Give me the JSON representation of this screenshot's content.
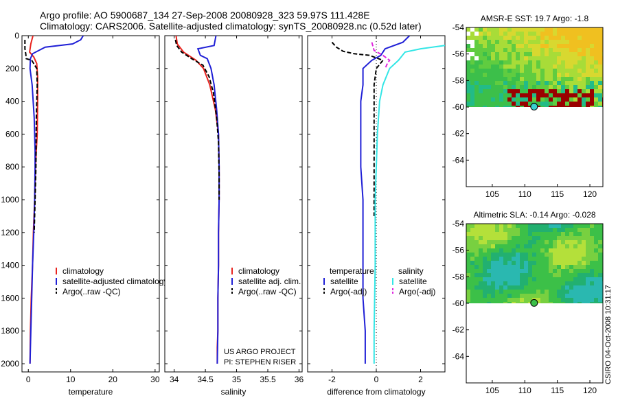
{
  "header": {
    "line1": "Argo profile: AO 5900687_134 27-Sep-2008 20080928_323 59.97S 111.428E",
    "line2": "Climatology: CARS2006. Satellite-adjusted climatology: synTS_20080928.nc (0.52d later)"
  },
  "credit": "CSIRO 04-Oct-2008 10:31:17",
  "colors": {
    "climatology": "#e8231e",
    "satellite": "#1f1fd6",
    "argo": "#000000",
    "sal_satellite": "#33e6e6",
    "sal_argo": "#e026e0",
    "land": "#9a0000"
  },
  "chart_data": [
    {
      "type": "line",
      "name": "temperature-profile",
      "xlabel": "temperature",
      "ylabel": "",
      "xlim": [
        -1.5,
        31
      ],
      "ylim": [
        2050,
        0
      ],
      "xticks": [
        0,
        10,
        20,
        30
      ],
      "yticks": [
        0,
        200,
        400,
        600,
        800,
        1000,
        1200,
        1400,
        1600,
        1800,
        2000
      ],
      "legend": [
        "climatology",
        "satellite-adjusted climatology",
        "Argo(..raw -QC)"
      ],
      "series": [
        {
          "name": "climatology",
          "style": "solid",
          "color": "#e8231e",
          "x": [
            1.1,
            0.6,
            0.3,
            1.3,
            2.0,
            2.2,
            2.2,
            2.1,
            1.9,
            1.7,
            1.5,
            1.2,
            1.0,
            0.7,
            0.5,
            0.4
          ],
          "y": [
            0,
            50,
            100,
            130,
            170,
            250,
            400,
            600,
            700,
            800,
            1000,
            1200,
            1400,
            1600,
            1800,
            2000
          ]
        },
        {
          "name": "satellite-adjusted climatology",
          "style": "solid",
          "color": "#1f1fd6",
          "x": [
            13.0,
            12.4,
            10.5,
            4.0,
            1.0,
            0.5,
            0.4,
            0.9,
            1.4,
            1.6,
            1.6,
            1.5,
            1.3,
            1.0,
            0.8,
            0.6,
            0.4
          ],
          "y": [
            0,
            25,
            50,
            70,
            110,
            140,
            200,
            300,
            500,
            700,
            800,
            1000,
            1200,
            1400,
            1600,
            1800,
            2000
          ]
        },
        {
          "name": "Argo(..raw -QC)",
          "style": "dashed",
          "color": "#000000",
          "x": [
            -0.8,
            -0.8,
            -0.6,
            -0.5,
            0.8,
            2.0,
            2.1,
            1.9,
            1.8,
            1.6,
            1.4
          ],
          "y": [
            25,
            80,
            110,
            140,
            150,
            200,
            300,
            500,
            800,
            1000,
            1200
          ]
        }
      ]
    },
    {
      "type": "line",
      "name": "salinity-profile",
      "xlabel": "salinity",
      "ylabel": "",
      "xlim": [
        33.85,
        36.05
      ],
      "ylim": [
        2050,
        0
      ],
      "xticks": [
        34,
        34.5,
        35,
        35.5,
        36
      ],
      "yticks": [
        0,
        200,
        400,
        600,
        800,
        1000,
        1200,
        1400,
        1600,
        1800,
        2000
      ],
      "legend": [
        "climatology",
        "satellite adj. clim.",
        "Argo(..raw -QC)"
      ],
      "annotation": [
        "US ARGO PROJECT",
        "PI: STEPHEN RISER"
      ],
      "series": [
        {
          "name": "climatology",
          "style": "solid",
          "color": "#e8231e",
          "x": [
            34.03,
            34.05,
            34.15,
            34.35,
            34.47,
            34.57,
            34.66,
            34.71,
            34.72,
            34.72,
            34.71,
            34.71,
            34.7,
            34.7,
            34.69,
            34.69
          ],
          "y": [
            0,
            50,
            100,
            150,
            200,
            300,
            450,
            600,
            800,
            1000,
            1200,
            1400,
            1600,
            1800,
            1900,
            2000
          ]
        },
        {
          "name": "satellite adj. clim.",
          "style": "solid",
          "color": "#1f1fd6",
          "x": [
            34.67,
            34.64,
            34.38,
            34.42,
            34.53,
            34.59,
            34.64,
            34.68,
            34.71,
            34.72,
            34.72,
            34.71,
            34.71,
            34.7,
            34.7,
            34.69
          ],
          "y": [
            0,
            60,
            80,
            120,
            140,
            200,
            300,
            450,
            600,
            800,
            1000,
            1200,
            1400,
            1600,
            1800,
            2000
          ]
        },
        {
          "name": "Argo(..raw -QC)",
          "style": "dashed",
          "color": "#000000",
          "x": [
            34.02,
            34.04,
            34.12,
            34.28,
            34.46,
            34.56,
            34.63,
            34.68,
            34.71,
            34.72,
            34.72
          ],
          "y": [
            25,
            60,
            100,
            140,
            180,
            250,
            350,
            500,
            650,
            850,
            1000
          ]
        }
      ]
    },
    {
      "type": "line",
      "name": "difference-profile",
      "xlabel": "difference from climatology",
      "ylabel": "",
      "xlim": [
        -3.1,
        3.1
      ],
      "ylim": [
        2050,
        0
      ],
      "xticks": [
        -2,
        0,
        2
      ],
      "yticks": [
        0,
        200,
        400,
        600,
        800,
        1000,
        1200,
        1400,
        1600,
        1800,
        2000
      ],
      "legend_groups": [
        {
          "title": "temperature",
          "items": [
            "satellite",
            "Argo(-adj)"
          ]
        },
        {
          "title": "salinity",
          "items": [
            "satellite",
            "Argo(-adj)"
          ]
        }
      ],
      "series": [
        {
          "name": "temperature satellite",
          "style": "solid",
          "color": "#1f1fd6",
          "x": [
            1.5,
            1.2,
            0.4,
            0.2,
            -0.2,
            -0.6,
            -0.6,
            -0.7,
            -0.7,
            -0.7,
            -0.6,
            -0.6,
            -0.6,
            -0.6,
            -0.5,
            -0.5
          ],
          "y": [
            0,
            40,
            80,
            120,
            150,
            200,
            300,
            400,
            600,
            800,
            1000,
            1200,
            1400,
            1600,
            1800,
            2000
          ]
        },
        {
          "name": "temperature Argo(-adj)",
          "style": "dashed",
          "color": "#000000",
          "x": [
            -2.0,
            -1.8,
            -1.5,
            -1.0,
            -0.3,
            0.3,
            0.0,
            -0.1,
            -0.1,
            -0.1,
            -0.1
          ],
          "y": [
            40,
            70,
            95,
            110,
            120,
            150,
            200,
            300,
            500,
            800,
            1100
          ]
        },
        {
          "name": "salinity satellite",
          "style": "solid",
          "color": "#33e6e6",
          "x": [
            3.1,
            2.0,
            1.3,
            1.0,
            0.6,
            0.3,
            0.15,
            0.05,
            0.0,
            -0.05,
            -0.05,
            -0.1,
            -0.1
          ],
          "y": [
            60,
            80,
            100,
            150,
            200,
            300,
            400,
            600,
            800,
            1000,
            1400,
            1800,
            2000
          ]
        },
        {
          "name": "salinity Argo(-adj)",
          "style": "dashed",
          "color": "#e026e0",
          "x": [
            -0.2,
            -0.1,
            0.3,
            0.6,
            0.5,
            0.4
          ],
          "y": [
            40,
            90,
            120,
            150,
            170,
            200
          ]
        }
      ]
    },
    {
      "type": "heatmap",
      "name": "sst-map",
      "title": "AMSR-E SST: 19.7 Argo: -1.8",
      "xlim": [
        101,
        122
      ],
      "ylim": [
        -66,
        -54
      ],
      "xticks": [
        105,
        110,
        115,
        120
      ],
      "yticks": [
        -54,
        -56,
        -58,
        -60,
        -62,
        -64
      ],
      "ytick_labels": [
        "-54",
        "-56",
        "-58",
        "-60",
        "-62",
        "-64"
      ],
      "profile_location": {
        "lon": 111.43,
        "lat": -59.97
      },
      "data_extent": {
        "lat_min": -60
      }
    },
    {
      "type": "heatmap",
      "name": "sla-map",
      "title": "Altimetric SLA: -0.14 Argo: -0.028",
      "xlim": [
        101,
        122
      ],
      "ylim": [
        -66,
        -54
      ],
      "xticks": [
        105,
        110,
        115,
        120
      ],
      "yticks": [
        -54,
        -56,
        -58,
        -60,
        -62,
        -64
      ],
      "ytick_labels": [
        "-54",
        "-56",
        "-58",
        "-60",
        "-62",
        "-64"
      ],
      "profile_location": {
        "lon": 111.43,
        "lat": -59.97
      },
      "data_extent": {
        "lat_min": -60
      }
    }
  ]
}
